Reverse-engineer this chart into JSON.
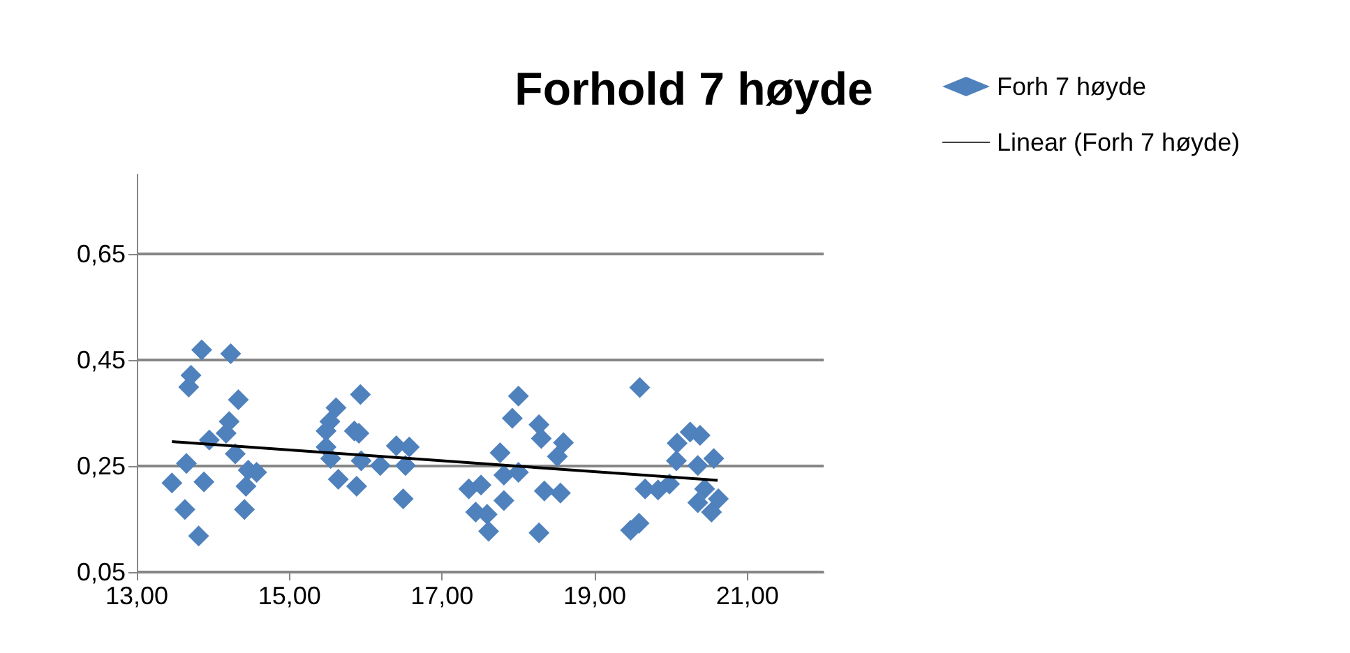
{
  "chart_data": {
    "type": "scatter",
    "title": "Forhold 7 høyde",
    "grid": "y",
    "legend": "top right",
    "xlim": [
      13,
      22
    ],
    "xticks": [
      {
        "value": 13,
        "label": "13,00"
      },
      {
        "value": 15,
        "label": "15,00"
      },
      {
        "value": 17,
        "label": "17,00"
      },
      {
        "value": 19,
        "label": "19,00"
      },
      {
        "value": 21,
        "label": "21,00"
      }
    ],
    "ylim": [
      0.05,
      0.8
    ],
    "yticks": [
      {
        "value": 0.05,
        "label": "0,05"
      },
      {
        "value": 0.25,
        "label": "0,25"
      },
      {
        "value": 0.45,
        "label": "0,45"
      },
      {
        "value": 0.65,
        "label": "0,65"
      }
    ],
    "series": [
      {
        "name": "Forh 7 høyde",
        "marker": "diamond",
        "color": "#4f81bd",
        "x": [
          13.85,
          14.23,
          13.71,
          13.68,
          14.33,
          14.21,
          13.95,
          14.17,
          14.29,
          13.65,
          13.46,
          13.88,
          14.46,
          14.57,
          14.43,
          13.63,
          14.41,
          13.81,
          15.93,
          15.61,
          15.53,
          15.48,
          15.85,
          15.91,
          15.48,
          15.54,
          15.94,
          16.19,
          16.4,
          16.57,
          16.52,
          15.64,
          15.88,
          16.49,
          17.35,
          17.51,
          17.44,
          17.59,
          17.61,
          17.81,
          17.76,
          17.81,
          18.0,
          17.92,
          18.0,
          18.27,
          18.3,
          18.59,
          18.51,
          18.34,
          18.55,
          18.27,
          19.59,
          19.66,
          19.83,
          19.98,
          20.07,
          20.08,
          20.25,
          20.38,
          20.56,
          20.35,
          20.44,
          20.62,
          20.35,
          20.53,
          19.47,
          19.58
        ],
        "values": [
          0.469,
          0.462,
          0.421,
          0.399,
          0.375,
          0.334,
          0.299,
          0.312,
          0.273,
          0.255,
          0.218,
          0.22,
          0.242,
          0.238,
          0.212,
          0.168,
          0.168,
          0.118,
          0.385,
          0.36,
          0.334,
          0.316,
          0.316,
          0.312,
          0.286,
          0.264,
          0.26,
          0.251,
          0.288,
          0.286,
          0.251,
          0.225,
          0.212,
          0.188,
          0.207,
          0.214,
          0.163,
          0.159,
          0.127,
          0.185,
          0.275,
          0.233,
          0.238,
          0.34,
          0.382,
          0.328,
          0.302,
          0.294,
          0.268,
          0.203,
          0.199,
          0.124,
          0.398,
          0.207,
          0.205,
          0.216,
          0.26,
          0.293,
          0.314,
          0.308,
          0.264,
          0.251,
          0.207,
          0.188,
          0.181,
          0.163,
          0.129,
          0.142
        ]
      },
      {
        "name": "Linear (Forh 7 høyde)",
        "type": "line",
        "marker": "none",
        "color": "#000000",
        "x": [
          13.46,
          20.61
        ],
        "values": [
          0.296,
          0.223
        ]
      }
    ]
  }
}
